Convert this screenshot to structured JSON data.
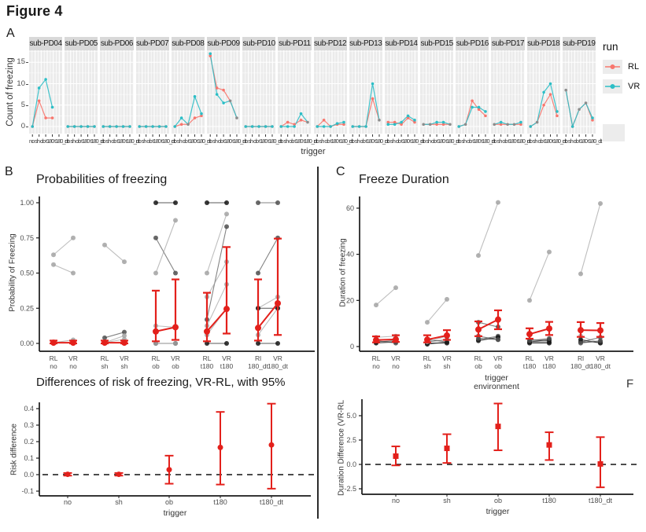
{
  "figure_title": "Figure 4",
  "panels": {
    "a": "A",
    "b": "B",
    "c": "C"
  },
  "stray_label": "F",
  "colors": {
    "rl": "#F8766D",
    "vr": "#2CBEC6",
    "red": "#E3201B",
    "panel_bg": "#EBEBEB",
    "strip_bg": "#D9D9D9",
    "grid": "#FFFFFF",
    "gray_pt": "#A3A3A3",
    "dark_pt": "#4F4F4F",
    "black_pt": "#141414",
    "axis": "#1A1A1A",
    "tick_text": "#4D4D4D"
  },
  "chart_data": [
    {
      "type": "line",
      "id": "count-of-freezing-by-subject",
      "ylabel": "Count of freezing",
      "xlabel": "trigger",
      "legend_title": "run",
      "series_names": [
        "RL",
        "VR"
      ],
      "yticks": [
        0,
        5,
        10,
        15
      ],
      "ylim": [
        0,
        17.5
      ],
      "categories": [
        "no",
        "sh",
        "ob",
        "t180",
        "t180_dt"
      ],
      "facets": [
        {
          "name": "sub-PD04",
          "RL": [
            0,
            6,
            2,
            2,
            null
          ],
          "VR": [
            0,
            9,
            11,
            4.5,
            null
          ]
        },
        {
          "name": "sub-PD05",
          "RL": [
            0,
            0,
            0,
            0,
            0
          ],
          "VR": [
            0,
            0,
            0,
            0,
            0
          ]
        },
        {
          "name": "sub-PD06",
          "RL": [
            0,
            0,
            0,
            0,
            0
          ],
          "VR": [
            0,
            0,
            0,
            0,
            0
          ]
        },
        {
          "name": "sub-PD07",
          "RL": [
            0,
            0,
            0,
            0,
            0
          ],
          "VR": [
            0,
            0,
            0,
            0,
            0
          ]
        },
        {
          "name": "sub-PD08",
          "RL": [
            0,
            0.5,
            0.5,
            2,
            2.5
          ],
          "VR": [
            0,
            2,
            0.5,
            7,
            3
          ]
        },
        {
          "name": "sub-PD09",
          "RL": [
            16.5,
            9,
            8.5,
            6,
            2
          ],
          "VR": [
            17,
            7.5,
            5.5,
            6,
            2
          ]
        },
        {
          "name": "sub-PD10",
          "RL": [
            0,
            0,
            0,
            0,
            0
          ],
          "VR": [
            0,
            0,
            0,
            0,
            0
          ]
        },
        {
          "name": "sub-PD11",
          "RL": [
            0,
            1,
            0.5,
            1.5,
            1
          ],
          "VR": [
            0,
            0,
            0,
            3,
            1
          ]
        },
        {
          "name": "sub-PD12",
          "RL": [
            0,
            1.5,
            0,
            0.5,
            0.5
          ],
          "VR": [
            0,
            0,
            0,
            0.7,
            1
          ]
        },
        {
          "name": "sub-PD13",
          "RL": [
            0,
            0,
            0,
            6.5,
            1.5
          ],
          "VR": [
            0,
            0,
            0,
            10,
            1.5
          ]
        },
        {
          "name": "sub-PD14",
          "RL": [
            1,
            1,
            0.5,
            2,
            1
          ],
          "VR": [
            0.5,
            0.5,
            1,
            2.5,
            1.5
          ]
        },
        {
          "name": "sub-PD15",
          "RL": [
            0.5,
            0.5,
            0.5,
            0.5,
            0.5
          ],
          "VR": [
            0.5,
            0.5,
            1,
            1,
            0.5
          ]
        },
        {
          "name": "sub-PD16",
          "RL": [
            0,
            0.5,
            6,
            4,
            2.5
          ],
          "VR": [
            0,
            0.5,
            4.5,
            4.5,
            3.5
          ]
        },
        {
          "name": "sub-PD17",
          "RL": [
            0.5,
            0.5,
            0.5,
            0.5,
            0.5
          ],
          "VR": [
            0.5,
            1,
            0.5,
            0.5,
            1
          ]
        },
        {
          "name": "sub-PD18",
          "RL": [
            0,
            1,
            5,
            7.5,
            2.5
          ],
          "VR": [
            0,
            1,
            8,
            10,
            3.5
          ]
        },
        {
          "name": "sub-PD19",
          "RL": [
            8.5,
            0,
            4,
            5.5,
            1.5
          ],
          "VR": [
            8.5,
            0,
            4,
            5.5,
            2
          ]
        }
      ]
    },
    {
      "type": "paired-scatter",
      "id": "probabilities-of-freezing",
      "title": "Probabilities of freezing",
      "ylabel": "Probability of Freezing",
      "ytick_values": [
        0,
        0.25,
        0.5,
        0.75,
        1
      ],
      "ytick_labels": [
        "0.00",
        "0.25",
        "0.50",
        "0.75",
        "1.00"
      ],
      "x_run_labels": [
        "RL",
        "VR",
        "RL",
        "VR",
        "RL",
        "VR",
        "RL",
        "VR",
        "Rl",
        "VR"
      ],
      "x_trigger_labels": [
        "no",
        "no",
        "sh",
        "sh",
        "ob",
        "ob",
        "t180",
        "t180",
        "180_dt",
        "180_dt"
      ],
      "xlabel_lines": [],
      "means": {
        "RL": [
          [
            0.005,
            0,
            0.02
          ],
          [
            0.005,
            0,
            0.02
          ],
          [
            0.085,
            0.015,
            0.375
          ],
          [
            0.085,
            0.015,
            0.36
          ],
          [
            0.11,
            0.02,
            0.455
          ]
        ],
        "VR": [
          [
            0.005,
            0,
            0.02
          ],
          [
            0.005,
            0,
            0.02
          ],
          [
            0.115,
            0.025,
            0.455
          ],
          [
            0.245,
            0.07,
            0.685
          ],
          [
            0.285,
            0.06,
            0.745
          ]
        ]
      },
      "pairs": [
        [
          [
            0.63,
            0.75,
            0
          ],
          [
            0.56,
            0.5,
            0
          ],
          [
            0.005,
            0.025,
            0
          ],
          [
            0.005,
            0.005,
            0
          ]
        ],
        [
          [
            0.7,
            0.58,
            0
          ],
          [
            0.04,
            0.08,
            1
          ],
          [
            0.005,
            0.055,
            0
          ],
          [
            0.005,
            0.03,
            0
          ],
          [
            0.005,
            0.005,
            0
          ]
        ],
        [
          [
            1,
            1,
            2
          ],
          [
            0.75,
            0.5,
            1
          ],
          [
            0.5,
            0.875,
            0
          ],
          [
            0.125,
            0.115,
            0
          ],
          [
            0,
            0,
            2
          ],
          [
            0,
            0,
            0
          ]
        ],
        [
          [
            1,
            1,
            2
          ],
          [
            0.5,
            0.92,
            0
          ],
          [
            0.17,
            0.83,
            1
          ],
          [
            0.33,
            0.58,
            0
          ],
          [
            0.125,
            0.42,
            0
          ],
          [
            0.06,
            0.25,
            0
          ],
          [
            0,
            0,
            2
          ]
        ],
        [
          [
            1,
            1,
            1
          ],
          [
            0.5,
            0.75,
            1
          ],
          [
            0.25,
            0.33,
            0
          ],
          [
            0.06,
            0.25,
            0
          ],
          [
            0.25,
            0.25,
            2
          ],
          [
            0,
            0,
            2
          ]
        ]
      ]
    },
    {
      "type": "errorbar",
      "id": "risk-difference",
      "title": "Differences of risk of freezing, VR-RL, with 95%",
      "ylabel": "Risk difference",
      "xlabel": "trigger",
      "marker": "circle",
      "zero_line": true,
      "categories": [
        "no",
        "sh",
        "ob",
        "t180",
        "t180_dt"
      ],
      "ytick_values": [
        -0.1,
        0,
        0.1,
        0.2,
        0.3,
        0.4
      ],
      "ytick_labels": [
        "-0.1",
        "0.0",
        "0.1",
        "0.2",
        "0.3",
        "0.4"
      ],
      "values": [
        0.002,
        0.002,
        0.03,
        0.165,
        0.18
      ],
      "ci_low": [
        -0.006,
        -0.006,
        -0.055,
        -0.06,
        -0.085
      ],
      "ci_high": [
        0.01,
        0.01,
        0.115,
        0.38,
        0.43
      ]
    },
    {
      "type": "paired-scatter",
      "id": "freeze-duration",
      "title": "Freeze Duration",
      "ylabel": "Duration of freezing",
      "ytick_values": [
        0,
        20,
        40,
        60
      ],
      "ytick_labels": [
        "0",
        "20",
        "40",
        "60"
      ],
      "x_run_labels": [
        "RL",
        "VR",
        "RL",
        "VR",
        "RL",
        "VR",
        "RL",
        "VR",
        "Rl",
        "VR"
      ],
      "x_trigger_labels": [
        "no",
        "no",
        "sh",
        "sh",
        "ob",
        "ob",
        "t180",
        "t180",
        "180_dt",
        "180_dt"
      ],
      "xlabel_lines": [
        "trigger",
        "environment"
      ],
      "means": {
        "RL": [
          [
            2.8,
            1.8,
            4.4
          ],
          [
            3.0,
            1.8,
            4.9
          ],
          [
            7.4,
            4.5,
            10.9
          ],
          [
            5.4,
            3.4,
            7.9
          ],
          [
            7.1,
            4.2,
            10.6
          ]
        ],
        "VR": [
          [
            3.1,
            2.0,
            4.9
          ],
          [
            4.8,
            2.9,
            7.1
          ],
          [
            11.7,
            7.5,
            15.7
          ],
          [
            7.8,
            5.0,
            10.7
          ],
          [
            7.0,
            4.2,
            10.2
          ]
        ]
      },
      "pairs": [
        [
          [
            18,
            25.5,
            0
          ],
          [
            2,
            2.5,
            2
          ],
          [
            3,
            3,
            1
          ],
          [
            1.5,
            2,
            2
          ],
          [
            4,
            4.5,
            0
          ],
          [
            2.5,
            1.5,
            1
          ]
        ],
        [
          [
            10.5,
            20.5,
            0
          ],
          [
            1,
            2,
            2
          ],
          [
            2,
            3,
            1
          ],
          [
            3,
            2,
            1
          ],
          [
            1.5,
            1.5,
            2
          ],
          [
            2,
            4.5,
            0
          ]
        ],
        [
          [
            39.5,
            62.5,
            0
          ],
          [
            10.5,
            8.5,
            1
          ],
          [
            3,
            4.5,
            1
          ],
          [
            4.5,
            3,
            1
          ],
          [
            2.5,
            4,
            2
          ],
          [
            3.5,
            3,
            1
          ]
        ],
        [
          [
            20,
            41,
            0
          ],
          [
            2,
            2,
            2
          ],
          [
            3,
            2.5,
            1
          ],
          [
            2,
            3,
            2
          ],
          [
            1.5,
            1.5,
            2
          ],
          [
            2.5,
            3.5,
            1
          ]
        ],
        [
          [
            31.5,
            62,
            0
          ],
          [
            2,
            2,
            2
          ],
          [
            4.5,
            1.5,
            0
          ],
          [
            2,
            4,
            1
          ],
          [
            3,
            1.5,
            2
          ],
          [
            1.5,
            2.5,
            1
          ]
        ]
      ]
    },
    {
      "type": "errorbar",
      "id": "duration-difference",
      "ylabel": "Duration Difference (VR-RL",
      "xlabel": "trigger",
      "marker": "square",
      "zero_line": true,
      "categories": [
        "no",
        "sh",
        "ob",
        "t180",
        "t180_dt"
      ],
      "ytick_values": [
        -2.5,
        0,
        2.5,
        5
      ],
      "ytick_labels": [
        "-2.5",
        "0.0",
        "2.5",
        "5.0"
      ],
      "values": [
        0.85,
        1.65,
        3.9,
        2.0,
        0.05
      ],
      "ci_low": [
        -0.1,
        0.15,
        1.45,
        0.45,
        -2.35
      ],
      "ci_high": [
        1.85,
        3.1,
        6.25,
        3.3,
        2.8
      ]
    }
  ]
}
